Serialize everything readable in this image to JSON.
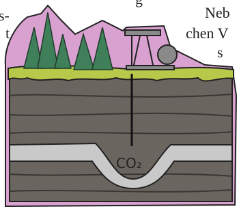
{
  "text_fragments": {
    "left": [
      "s-",
      "t"
    ],
    "top": "g",
    "right": [
      "Neb",
      "chen V",
      "s"
    ]
  },
  "illustration": {
    "label": "CO₂"
  }
}
